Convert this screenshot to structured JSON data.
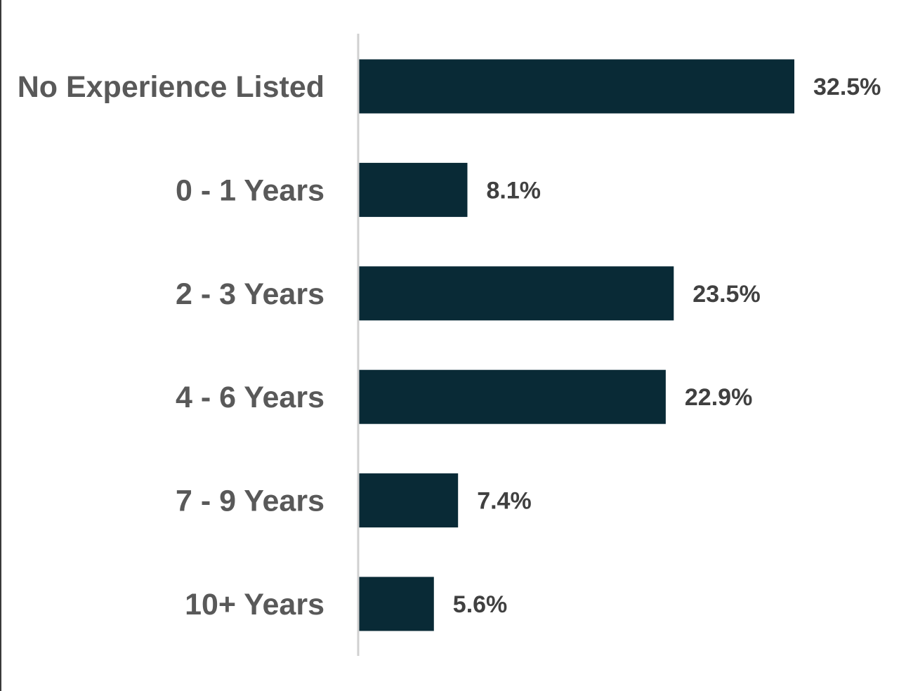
{
  "chart_data": {
    "type": "bar",
    "orientation": "horizontal",
    "title": "",
    "xlabel": "",
    "ylabel": "",
    "categories": [
      "No Experience Listed",
      "0 - 1 Years",
      "2 - 3 Years",
      "4 - 6 Years",
      "7 - 9 Years",
      "10+ Years"
    ],
    "values": [
      32.5,
      8.1,
      23.5,
      22.9,
      7.4,
      5.6
    ],
    "value_labels": [
      "32.5%",
      "8.1%",
      "23.5%",
      "22.9%",
      "7.4%",
      "5.6%"
    ],
    "unit": "%",
    "xlim": [
      0,
      32.5
    ],
    "grid": false,
    "legend": "none",
    "colors": {
      "bar": "#092a36",
      "category_text": "#595959",
      "value_text": "#404040",
      "axis_line": "#d0d0d0"
    }
  }
}
